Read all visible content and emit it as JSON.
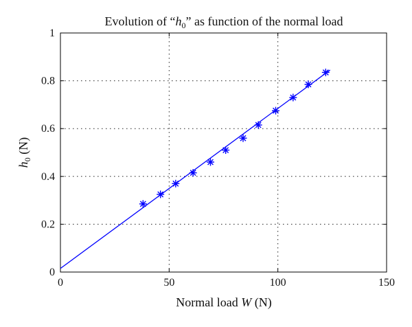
{
  "chart_data": {
    "type": "scatter",
    "title": {
      "before": "Evolution of “",
      "var": "h",
      "sub": "0",
      "after": "” as function of the normal load"
    },
    "xlabel": {
      "text": "Normal load ",
      "var": "W",
      "unit": " (N)"
    },
    "ylabel": {
      "var": "h",
      "sub": "0",
      "unit": " (N)"
    },
    "xlim": [
      0,
      150
    ],
    "ylim": [
      0,
      1
    ],
    "xticks": [
      0,
      50,
      100,
      150
    ],
    "yticks": [
      0,
      0.2,
      0.4,
      0.6,
      0.8,
      1
    ],
    "grid": true,
    "series": [
      {
        "marker": "*",
        "color": "#0000ff",
        "x": [
          38,
          46,
          53,
          61,
          69,
          76,
          84,
          91,
          99,
          107,
          114,
          122
        ],
        "y": [
          0.285,
          0.325,
          0.37,
          0.415,
          0.46,
          0.51,
          0.56,
          0.615,
          0.675,
          0.73,
          0.785,
          0.835
        ]
      },
      {
        "type": "line",
        "color": "#0000ff",
        "x": [
          0,
          124
        ],
        "y": [
          0.015,
          0.845
        ]
      }
    ]
  }
}
